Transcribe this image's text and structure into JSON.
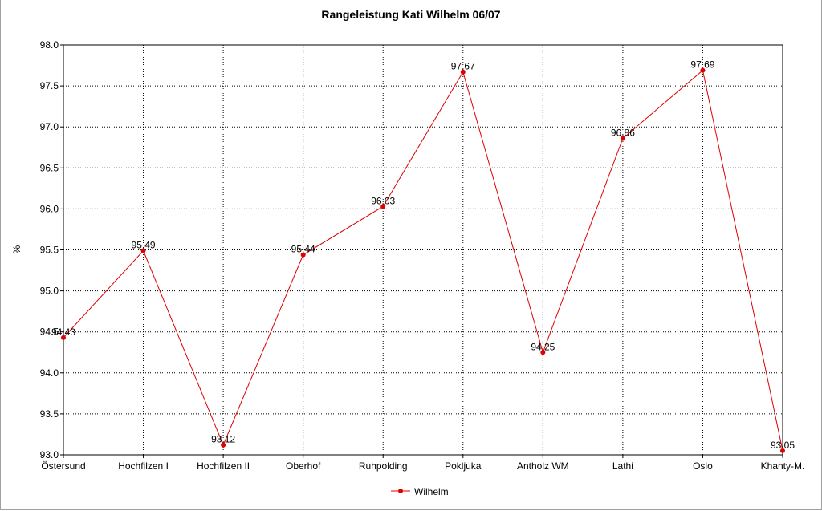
{
  "chart_data": {
    "type": "line",
    "title": "Rangeleistung Kati Wilhelm 06/07",
    "xlabel": "",
    "ylabel": "%",
    "ylim": [
      93.0,
      98.0
    ],
    "yticks": [
      "93.0",
      "93.5",
      "94.0",
      "94.5",
      "95.0",
      "95.5",
      "96.0",
      "96.5",
      "97.0",
      "97.5",
      "98.0"
    ],
    "categories": [
      "Östersund",
      "Hochfilzen I",
      "Hochfilzen II",
      "Oberhof",
      "Ruhpolding",
      "Pokljuka",
      "Antholz WM",
      "Lathi",
      "Oslo",
      "Khanty-M."
    ],
    "series": [
      {
        "name": "Wilhelm",
        "color": "#e00000",
        "values": [
          94.43,
          95.49,
          93.12,
          95.44,
          96.03,
          97.67,
          94.25,
          96.86,
          97.69,
          93.05
        ],
        "labels": [
          "94.43",
          "95.49",
          "93.12",
          "95.44",
          "96.03",
          "97.67",
          "94.25",
          "96.86",
          "97.69",
          "93.05"
        ]
      }
    ],
    "grid": true,
    "legend_position": "bottom"
  }
}
